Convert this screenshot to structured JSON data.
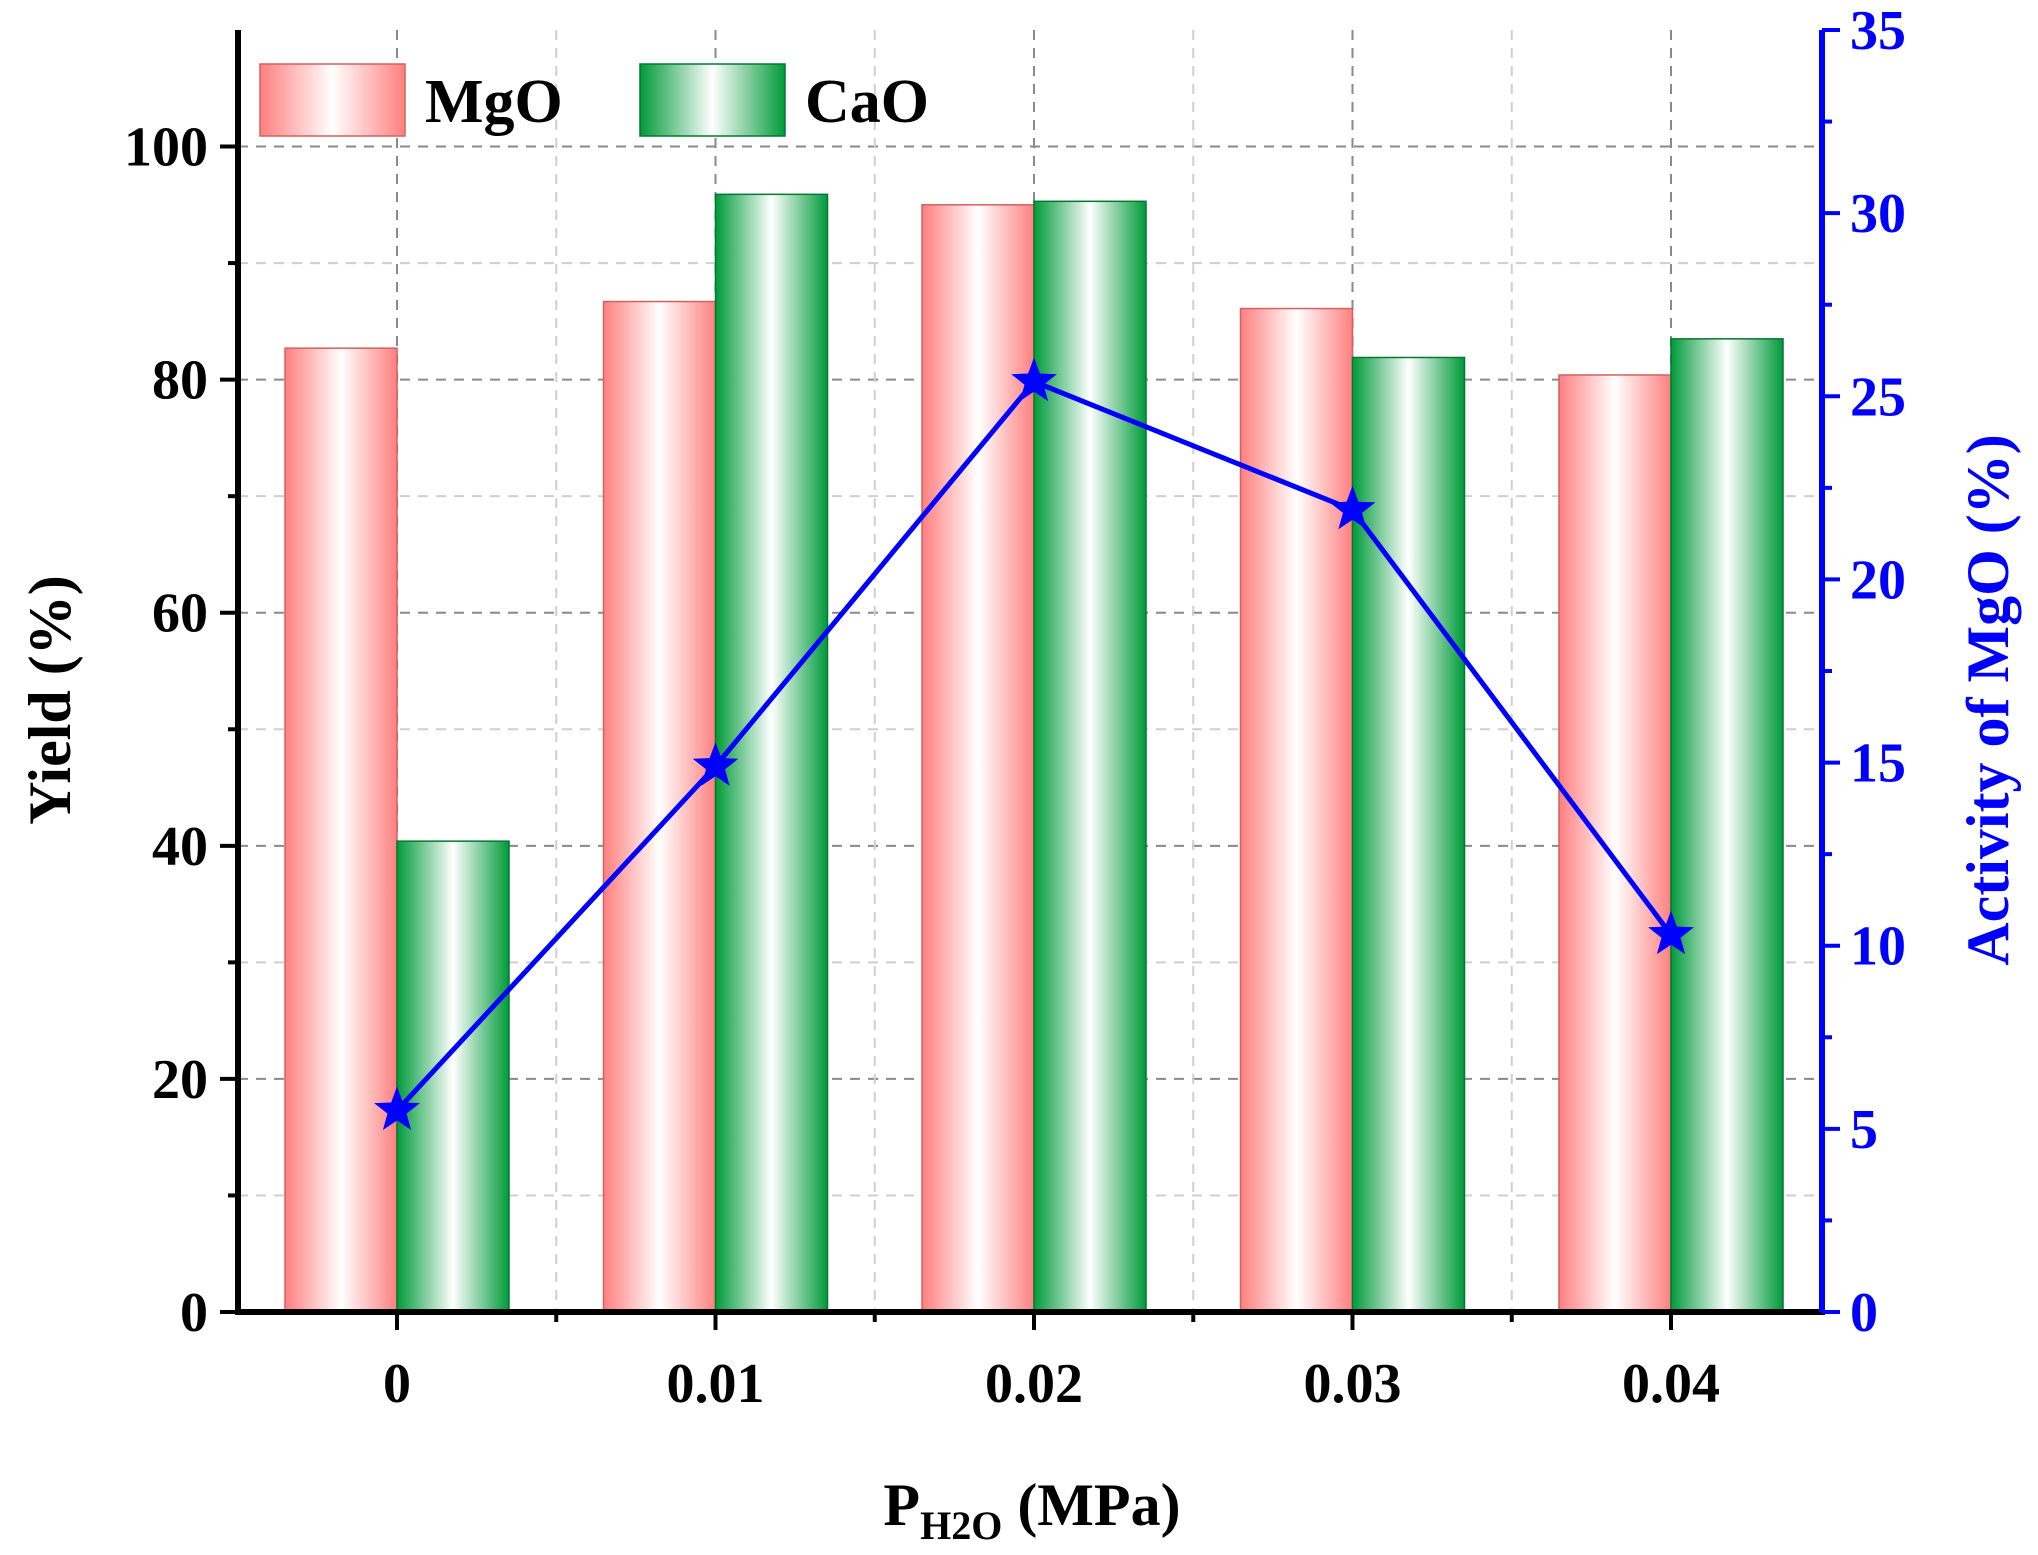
{
  "chart_data": {
    "type": "bar",
    "categories": [
      "0",
      "0.01",
      "0.02",
      "0.03",
      "0.04"
    ],
    "series": [
      {
        "name": "MgO",
        "axis": "left",
        "kind": "bar",
        "values": [
          82.7,
          86.7,
          95.0,
          86.1,
          80.4
        ]
      },
      {
        "name": "CaO",
        "axis": "left",
        "kind": "bar",
        "values": [
          40.4,
          95.9,
          95.3,
          81.9,
          83.5
        ]
      },
      {
        "name": "Activity of MgO",
        "axis": "right",
        "kind": "line",
        "marker": "star",
        "values": [
          5.5,
          14.9,
          25.4,
          21.9,
          10.3
        ]
      }
    ],
    "xlabel_main": "P",
    "xlabel_sub": "H2O",
    "xlabel_unit": " (MPa)",
    "ylabel": "Yield (%)",
    "ylabel_right": "Activity of MgO (%)",
    "ylim": [
      0,
      110
    ],
    "ylim_right": [
      0,
      35
    ],
    "yticks": [
      0,
      20,
      40,
      60,
      80,
      100
    ],
    "yticks_right": [
      0,
      5,
      10,
      15,
      20,
      25,
      30,
      35
    ],
    "grid": true,
    "legend_position": "top-left",
    "colors": {
      "mgo": "#ff7f7f",
      "cao": "#009a3a",
      "line": "#0000ff",
      "axis": "#000000"
    }
  }
}
